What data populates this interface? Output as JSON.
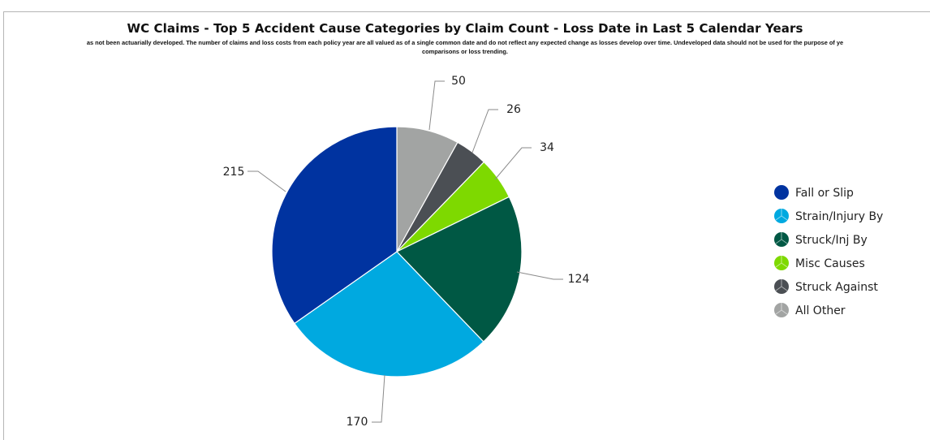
{
  "chart_data": {
    "type": "pie",
    "title": "WC Claims - Top 5 Accident Cause Categories by Claim Count - Loss Date in Last 5 Calendar Years",
    "subtitle_line1": "as not been actuarially developed. The number of claims and loss costs from each policy year are all valued as of a single common date and do not reflect any expected change as losses develop over time. Undeveloped data should not be used for the purpose of ye",
    "subtitle_line2": "comparisons or loss trending.",
    "legend_position": "right",
    "slices": [
      {
        "label": "Fall or Slip",
        "value": 215,
        "color": "#0033a0"
      },
      {
        "label": "Strain/Injury By",
        "value": 170,
        "color": "#00a9e0"
      },
      {
        "label": "Struck/Inj By",
        "value": 124,
        "color": "#005844"
      },
      {
        "label": "Misc Causes",
        "value": 34,
        "color": "#7ed900"
      },
      {
        "label": "Struck Against",
        "value": 26,
        "color": "#4b4f54"
      },
      {
        "label": "All Other",
        "value": 50,
        "color": "#a2a4a3"
      }
    ]
  }
}
